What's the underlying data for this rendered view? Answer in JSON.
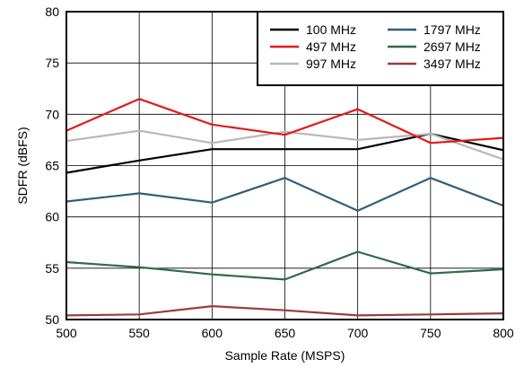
{
  "chart_data": {
    "type": "line",
    "xlabel": "Sample Rate (MSPS)",
    "ylabel": "SDFR (dBFS)",
    "xlim": [
      500,
      800
    ],
    "ylim": [
      50,
      80
    ],
    "x_ticks": [
      500,
      550,
      600,
      650,
      700,
      750,
      800
    ],
    "y_ticks": [
      50,
      55,
      60,
      65,
      70,
      75,
      80
    ],
    "grid": true,
    "legend_position": "top-right",
    "x": [
      500,
      550,
      600,
      650,
      700,
      750,
      800
    ],
    "series": [
      {
        "name": "100 MHz",
        "color": "#000000",
        "values": [
          64.3,
          65.5,
          66.6,
          66.6,
          66.6,
          68.1,
          66.5
        ]
      },
      {
        "name": "497 MHz",
        "color": "#e31a1c",
        "values": [
          68.4,
          71.5,
          69.0,
          68.0,
          70.5,
          67.2,
          67.7
        ]
      },
      {
        "name": "997 MHz",
        "color": "#b8b8b8",
        "values": [
          67.4,
          68.4,
          67.2,
          68.3,
          67.5,
          68.1,
          65.6
        ]
      },
      {
        "name": "1797 MHz",
        "color": "#2f5f7a",
        "values": [
          61.5,
          62.3,
          61.4,
          63.8,
          60.6,
          63.8,
          61.1
        ]
      },
      {
        "name": "2697 MHz",
        "color": "#2e6b45",
        "values": [
          55.6,
          55.1,
          54.4,
          53.9,
          56.6,
          54.5,
          54.9
        ]
      },
      {
        "name": "3497 MHz",
        "color": "#9b3c3c",
        "values": [
          50.4,
          50.5,
          51.3,
          50.9,
          50.4,
          50.5,
          50.6
        ]
      }
    ]
  }
}
